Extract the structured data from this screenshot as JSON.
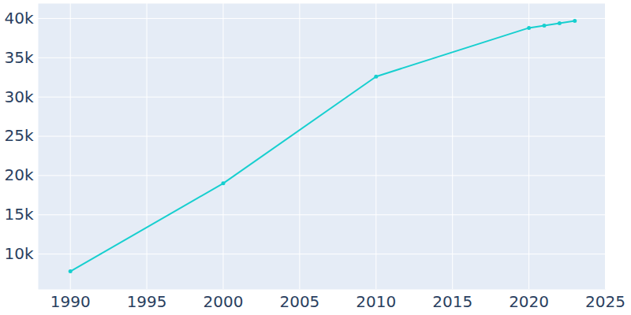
{
  "chart_data": {
    "type": "line",
    "x": [
      1990,
      2000,
      2010,
      2020,
      2021,
      2022,
      2023
    ],
    "values": [
      7800,
      19000,
      32600,
      38800,
      39100,
      39400,
      39700
    ],
    "color": "#17cfcf",
    "marker": "circle",
    "xlim": [
      1987.9,
      2025
    ],
    "xticks": [
      1990,
      1995,
      2000,
      2005,
      2010,
      2015,
      2020,
      2025
    ],
    "ylim": [
      5500,
      41900
    ],
    "yticks": [
      {
        "value": 10000,
        "label": "10k"
      },
      {
        "value": 15000,
        "label": "15k"
      },
      {
        "value": 20000,
        "label": "20k"
      },
      {
        "value": 25000,
        "label": "25k"
      },
      {
        "value": 30000,
        "label": "30k"
      },
      {
        "value": 35000,
        "label": "35k"
      },
      {
        "value": 40000,
        "label": "40k"
      }
    ],
    "grid": true
  }
}
